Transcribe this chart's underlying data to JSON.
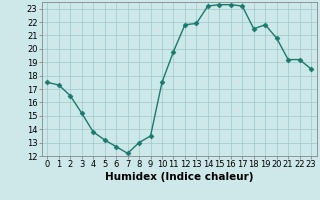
{
  "x": [
    0,
    1,
    2,
    3,
    4,
    5,
    6,
    7,
    8,
    9,
    10,
    11,
    12,
    13,
    14,
    15,
    16,
    17,
    18,
    19,
    20,
    21,
    22,
    23
  ],
  "y": [
    17.5,
    17.3,
    16.5,
    15.2,
    13.8,
    13.2,
    12.7,
    12.2,
    13.0,
    13.5,
    17.5,
    19.8,
    21.8,
    21.9,
    23.2,
    23.3,
    23.3,
    23.2,
    21.5,
    21.8,
    20.8,
    19.2,
    19.2,
    18.5
  ],
  "line_color": "#1a7a6e",
  "marker": "D",
  "markersize": 2.5,
  "linewidth": 1.0,
  "background_color": "#cde8e8",
  "grid_color": "#a0c8c8",
  "xlabel": "Humidex (Indice chaleur)",
  "xlabel_fontsize": 7.5,
  "ylim": [
    12,
    23.5
  ],
  "xlim": [
    -0.5,
    23.5
  ],
  "yticks": [
    12,
    13,
    14,
    15,
    16,
    17,
    18,
    19,
    20,
    21,
    22,
    23
  ],
  "xticks": [
    0,
    1,
    2,
    3,
    4,
    5,
    6,
    7,
    8,
    9,
    10,
    11,
    12,
    13,
    14,
    15,
    16,
    17,
    18,
    19,
    20,
    21,
    22,
    23
  ],
  "tick_fontsize": 6.0,
  "spine_color": "#888888"
}
